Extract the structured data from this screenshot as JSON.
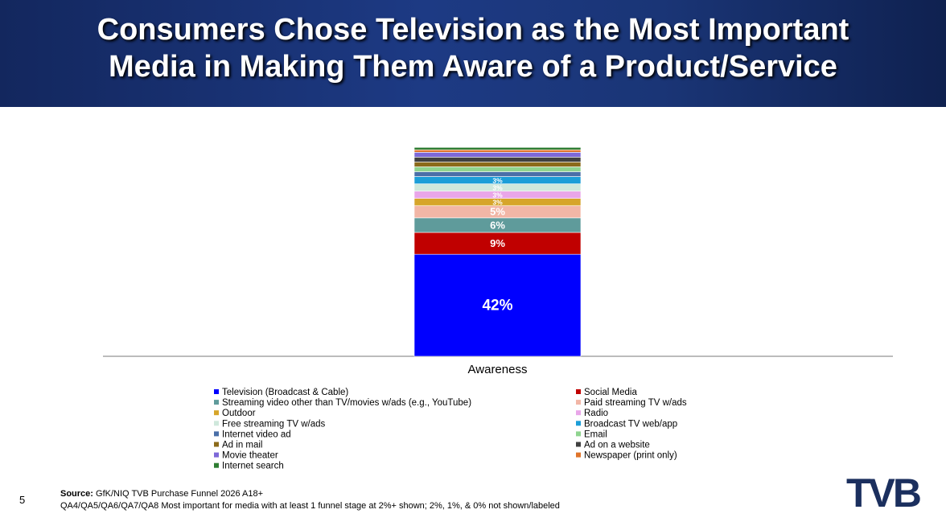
{
  "header": {
    "title_lines": [
      "Consumers Chose Television as the Most Important",
      "Media in Making Them Aware of a Product/Service"
    ]
  },
  "chart_data": {
    "type": "stacked_bar",
    "categories": [
      "Awareness"
    ],
    "ylim": [
      0,
      100
    ],
    "series": [
      {
        "name": "Television (Broadcast & Cable)",
        "color": "#0000ff",
        "values": [
          42
        ],
        "value_labels": [
          "42%"
        ]
      },
      {
        "name": "Social Media",
        "color": "#c00000",
        "values": [
          9
        ],
        "value_labels": [
          "9%"
        ]
      },
      {
        "name": "Streaming video other than TV/movies w/ads (e.g., YouTube)",
        "color": "#5f9b9b",
        "values": [
          6
        ],
        "value_labels": [
          "6%"
        ]
      },
      {
        "name": "Paid streaming TV w/ads",
        "color": "#f2b6a6",
        "values": [
          5
        ],
        "value_labels": [
          "5%"
        ]
      },
      {
        "name": "Outdoor",
        "color": "#d6a52a",
        "values": [
          3
        ],
        "value_labels": [
          "3%"
        ]
      },
      {
        "name": "Radio",
        "color": "#e9a6e9",
        "values": [
          3
        ],
        "value_labels": [
          "3%"
        ]
      },
      {
        "name": "Free streaming TV w/ads",
        "color": "#cfe8dc",
        "values": [
          3
        ],
        "value_labels": [
          "3%"
        ]
      },
      {
        "name": "Broadcast TV web/app",
        "color": "#1c9ed8",
        "values": [
          3
        ],
        "value_labels": [
          "3%"
        ]
      },
      {
        "name": "Internet video ad",
        "color": "#4a6fa8",
        "values": [
          2
        ]
      },
      {
        "name": "Email",
        "color": "#8fd48f",
        "values": [
          2
        ]
      },
      {
        "name": "Ad in mail",
        "color": "#8b6a1a",
        "values": [
          2
        ]
      },
      {
        "name": "Ad on a website",
        "color": "#404040",
        "values": [
          2
        ]
      },
      {
        "name": "Movie theater",
        "color": "#7d68d8",
        "values": [
          2
        ]
      },
      {
        "name": "Newspaper (print only)",
        "color": "#e0742a",
        "values": [
          1
        ]
      },
      {
        "name": "Internet search",
        "color": "#2e7d32",
        "values": [
          1
        ]
      }
    ]
  },
  "footer": {
    "page_number": "5",
    "source_label": "Source:",
    "source": "GfK/NIQ TVB Purchase Funnel 2026 A18+",
    "note": "QA4/QA5/QA6/QA7/QA8 Most important for media with at least 1 funnel stage at 2%+ shown; 2%, 1%, & 0% not shown/labeled",
    "logo": "TVB"
  }
}
